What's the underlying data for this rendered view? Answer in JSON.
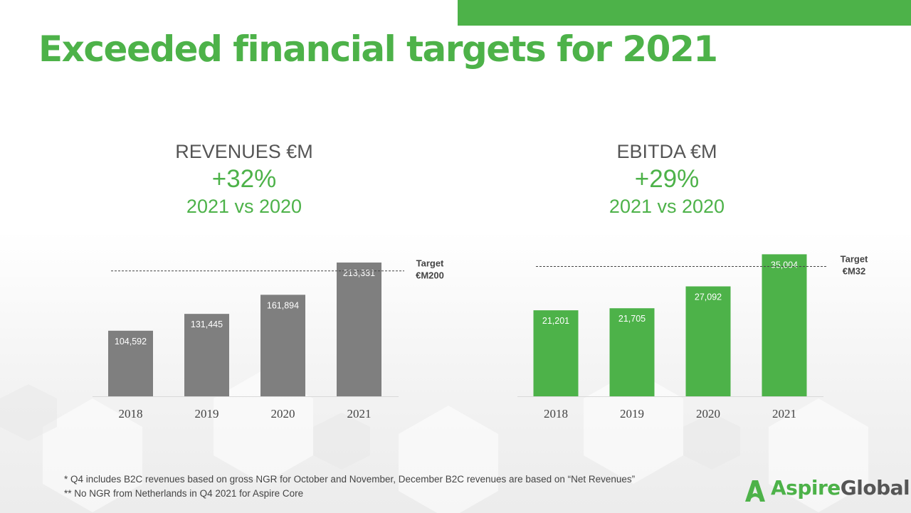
{
  "slide": {
    "title": "Exceeded financial targets for 2021",
    "accent_color": "#4db249"
  },
  "revenues": {
    "heading": "REVENUES €M",
    "growth": "+32%",
    "comparison": "2021 vs 2020"
  },
  "ebitda": {
    "heading": "EBITDA €M",
    "growth": "+29%",
    "comparison": "2021 vs 2020"
  },
  "chart_data": [
    {
      "type": "bar",
      "categories": [
        "2018",
        "2019",
        "2020",
        "2021"
      ],
      "values": [
        104592,
        131445,
        161894,
        213331
      ],
      "data_labels": [
        "104,592",
        "131,445",
        "161,894",
        "213,331"
      ],
      "bar_color": "#7f7f7f",
      "target": {
        "value": 200000,
        "label_line1": "Target",
        "label_line2": "€M200"
      },
      "ylim": [
        0,
        236000
      ],
      "grid": false
    },
    {
      "type": "bar",
      "categories": [
        "2018",
        "2019",
        "2020",
        "2021"
      ],
      "values": [
        21201,
        21705,
        27092,
        35004
      ],
      "data_labels": [
        "21,201",
        "21,705",
        "27,092",
        "35,004"
      ],
      "bar_color": "#4db249",
      "target": {
        "value": 32000,
        "label_line1": "Target",
        "label_line2": "€M32"
      },
      "ylim": [
        0,
        37000
      ],
      "grid": false
    }
  ],
  "footnotes": {
    "note1": "*  Q4 includes B2C revenues based on gross NGR for October and November, December B2C revenues are based on “Net Revenues”",
    "note2": "** No NGR from Netherlands in Q4 2021 for Aspire Core"
  },
  "logo": {
    "part1": "Aspire",
    "part2": "Global",
    "icon": "aspire-a-icon"
  }
}
